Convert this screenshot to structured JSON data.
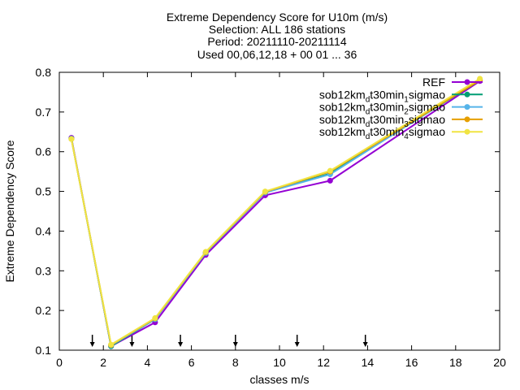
{
  "chart_data": {
    "type": "line",
    "title_lines": [
      "Extreme Dependency Score  for U10m (m/s)",
      "Selection: ALL    186 stations",
      "Period: 20211110-20211114",
      "Used 00,06,12,18 + 00 01 ... 36"
    ],
    "xlabel": "classes m/s",
    "ylabel": "Extreme Dependency Score",
    "xlim": [
      0,
      20
    ],
    "ylim": [
      0.1,
      0.8
    ],
    "xticks": [
      0,
      2,
      4,
      6,
      8,
      10,
      12,
      14,
      16,
      18,
      20
    ],
    "yticks": [
      0.1,
      0.2,
      0.3,
      0.4,
      0.5,
      0.6,
      0.7,
      0.8
    ],
    "grid": false,
    "legend_position": "top-right",
    "x": [
      0.55,
      2.35,
      4.35,
      6.65,
      9.35,
      12.3,
      19.1
    ],
    "series": [
      {
        "name": "REF",
        "name_parts": [
          {
            "t": "REF",
            "sub": false
          }
        ],
        "color": "#9400d3",
        "values": [
          0.635,
          0.11,
          0.17,
          0.34,
          0.49,
          0.527,
          0.778
        ]
      },
      {
        "name": "sob12km_dt30min_1sigmao",
        "name_parts": [
          {
            "t": "sob12km",
            "sub": false
          },
          {
            "t": "d",
            "sub": true
          },
          {
            "t": "t30min",
            "sub": false
          },
          {
            "t": "1",
            "sub": true
          },
          {
            "t": "sigmao",
            "sub": false
          }
        ],
        "color": "#009e73",
        "values": [
          0.633,
          0.11,
          0.178,
          0.345,
          0.497,
          0.545,
          0.78
        ]
      },
      {
        "name": "sob12km_dt30min_2sigmao",
        "name_parts": [
          {
            "t": "sob12km",
            "sub": false
          },
          {
            "t": "d",
            "sub": true
          },
          {
            "t": "t30min",
            "sub": false
          },
          {
            "t": "2",
            "sub": true
          },
          {
            "t": "sigmao",
            "sub": false
          }
        ],
        "color": "#56b4e9",
        "values": [
          0.633,
          0.112,
          0.178,
          0.345,
          0.497,
          0.543,
          0.782
        ]
      },
      {
        "name": "sob12km_dt30min_3sigmao",
        "name_parts": [
          {
            "t": "sob12km",
            "sub": false
          },
          {
            "t": "d",
            "sub": true
          },
          {
            "t": "t30min",
            "sub": false
          },
          {
            "t": "3",
            "sub": true
          },
          {
            "t": "sigmao",
            "sub": false
          }
        ],
        "color": "#e69f00",
        "values": [
          0.632,
          0.113,
          0.18,
          0.347,
          0.499,
          0.55,
          0.78
        ]
      },
      {
        "name": "sob12km_dt30min_4sigmao",
        "name_parts": [
          {
            "t": "sob12km",
            "sub": false
          },
          {
            "t": "d",
            "sub": true
          },
          {
            "t": "t30min",
            "sub": false
          },
          {
            "t": "4",
            "sub": true
          },
          {
            "t": "sigmao",
            "sub": false
          }
        ],
        "color": "#f0e442",
        "values": [
          0.632,
          0.114,
          0.181,
          0.348,
          0.5,
          0.552,
          0.784
        ]
      }
    ],
    "class_boundaries": [
      1.5,
      3.3,
      5.5,
      8.0,
      10.8,
      13.9
    ]
  }
}
